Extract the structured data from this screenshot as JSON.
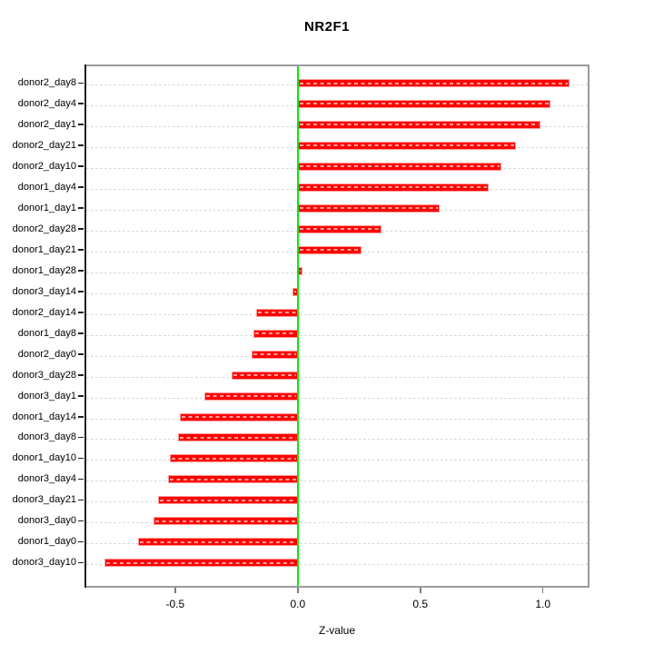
{
  "figure": {
    "title": "NR2F1",
    "background": "#ffffff"
  },
  "chart_data": {
    "type": "bar",
    "orientation": "horizontal",
    "title": "NR2F1",
    "xlabel": "Z-value",
    "ylabel": "",
    "grid": "on",
    "legend": "none",
    "categories": [
      "donor2_day8",
      "donor2_day4",
      "donor2_day1",
      "donor2_day21",
      "donor2_day10",
      "donor1_day4",
      "donor1_day1",
      "donor2_day28",
      "donor1_day21",
      "donor1_day28",
      "donor3_day14",
      "donor2_day14",
      "donor1_day8",
      "donor2_day0",
      "donor3_day28",
      "donor3_day1",
      "donor1_day14",
      "donor3_day8",
      "donor1_day10",
      "donor3_day4",
      "donor3_day21",
      "donor3_day0",
      "donor1_day0",
      "donor3_day10"
    ],
    "values": [
      1.11,
      1.03,
      0.99,
      0.89,
      0.83,
      0.78,
      0.58,
      0.34,
      0.26,
      0.02,
      -0.02,
      -0.17,
      -0.18,
      -0.19,
      -0.27,
      -0.38,
      -0.48,
      -0.49,
      -0.52,
      -0.53,
      -0.57,
      -0.59,
      -0.65,
      -0.79
    ],
    "xlim": [
      -0.87,
      1.19
    ],
    "x_ticks": [
      -0.5,
      0.0,
      0.5,
      1.0
    ],
    "x_tick_labels": [
      "-0.5",
      "0.0",
      "0.5",
      "1.0"
    ],
    "colors": {
      "bar": "#ff0000",
      "bar_border": "#ff9c9c",
      "bar_inner_dash": "#ffffff",
      "zero_line": "#00ee00",
      "gridline": "#d4d4d4",
      "frame": "#9b9b9b",
      "axis": "#000000"
    }
  }
}
